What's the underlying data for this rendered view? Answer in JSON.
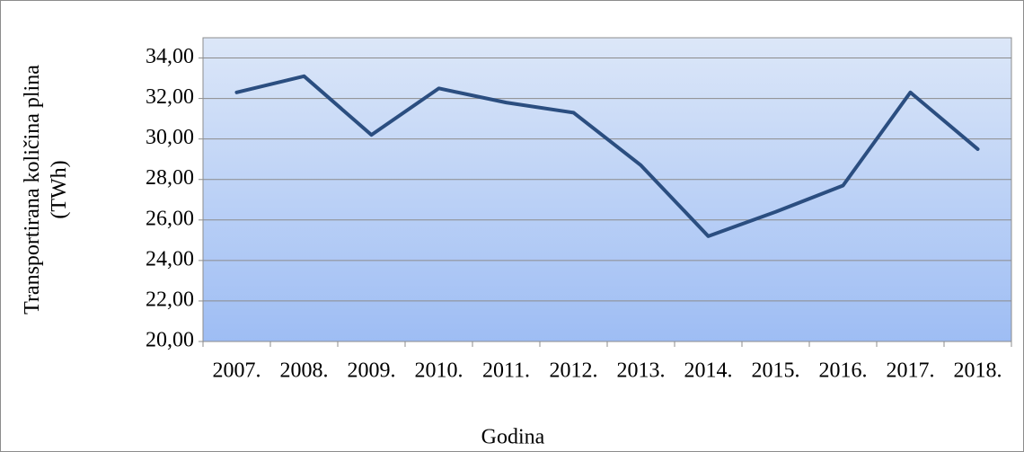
{
  "chart_data": {
    "type": "line",
    "y_label": "Transportirana količina plina (TWh)",
    "x_label": "Godina",
    "categories": [
      "2007.",
      "2008.",
      "2009.",
      "2010.",
      "2011.",
      "2012.",
      "2013.",
      "2014.",
      "2015.",
      "2016.",
      "2017.",
      "2018."
    ],
    "values": [
      32.3,
      33.1,
      30.2,
      32.5,
      31.8,
      31.3,
      28.7,
      25.2,
      26.4,
      27.7,
      32.3,
      29.5
    ],
    "color": "#2b4e80",
    "ylim": [
      20,
      35
    ],
    "yticks": [
      {
        "value": 20,
        "label": "20,00"
      },
      {
        "value": 22,
        "label": "22,00"
      },
      {
        "value": 24,
        "label": "24,00"
      },
      {
        "value": 26,
        "label": "26,00"
      },
      {
        "value": 28,
        "label": "28,00"
      },
      {
        "value": 30,
        "label": "30,00"
      },
      {
        "value": 32,
        "label": "32,00"
      },
      {
        "value": 34,
        "label": "34,00"
      }
    ],
    "grid": true
  }
}
